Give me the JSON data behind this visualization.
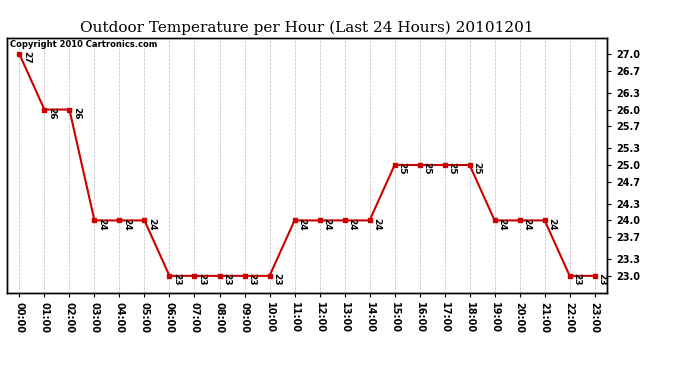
{
  "title": "Outdoor Temperature per Hour (Last 24 Hours) 20101201",
  "copyright_text": "Copyright 2010 Cartronics.com",
  "hours": [
    "00:00",
    "01:00",
    "02:00",
    "03:00",
    "04:00",
    "05:00",
    "06:00",
    "07:00",
    "08:00",
    "09:00",
    "10:00",
    "11:00",
    "12:00",
    "13:00",
    "14:00",
    "15:00",
    "16:00",
    "17:00",
    "18:00",
    "19:00",
    "20:00",
    "21:00",
    "22:00",
    "23:00"
  ],
  "temps": [
    27.0,
    26.0,
    26.0,
    24.0,
    24.0,
    24.0,
    23.0,
    23.0,
    23.0,
    23.0,
    23.0,
    24.0,
    24.0,
    24.0,
    24.0,
    25.0,
    25.0,
    25.0,
    25.0,
    24.0,
    24.0,
    24.0,
    23.0,
    23.0
  ],
  "ylim": [
    22.7,
    27.3
  ],
  "yticks_right": [
    23.0,
    23.3,
    23.7,
    24.0,
    24.3,
    24.7,
    25.0,
    25.3,
    25.7,
    26.0,
    26.3,
    26.7,
    27.0
  ],
  "line_color": "#cc0000",
  "marker_color": "#cc0000",
  "bg_color": "#ffffff",
  "grid_color": "#bbbbbb",
  "title_fontsize": 11,
  "tick_fontsize": 7,
  "annot_fontsize": 6.5,
  "copyright_fontsize": 6
}
